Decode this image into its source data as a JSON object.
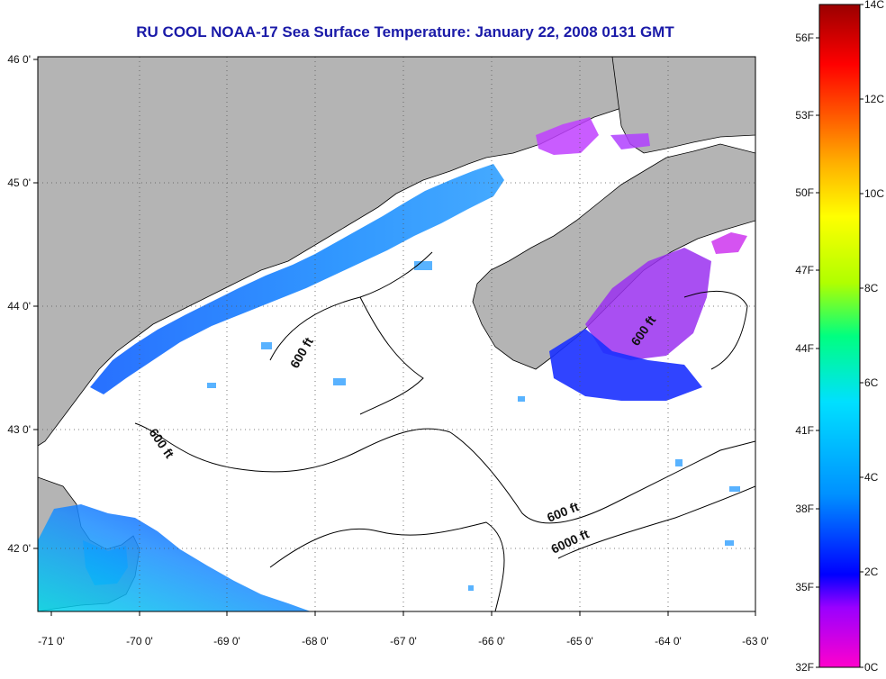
{
  "title": "RU COOL  NOAA-17  Sea Surface Temperature:  January 22, 2008 0131 GMT",
  "map": {
    "lon_ticks": [
      "-71 0'",
      "-70 0'",
      "-69 0'",
      "-68 0'",
      "-67 0'",
      "-66 0'",
      "-65 0'",
      "-64 0'",
      "-63 0'"
    ],
    "lat_ticks": [
      "46 0'",
      "45 0'",
      "44 0'",
      "43 0'",
      "42 0'"
    ],
    "contour_labels": [
      "600 ft",
      "600 ft",
      "600 ft",
      "600 ft",
      "6000 ft"
    ],
    "land_color": "#b4b4b4",
    "nodata_color": "#ffffff"
  },
  "colorbar": {
    "celsius": [
      "14C",
      "12C",
      "10C",
      "8C",
      "6C",
      "4C",
      "2C",
      "0C"
    ],
    "fahrenheit": [
      "56F",
      "53F",
      "50F",
      "47F",
      "44F",
      "41F",
      "38F",
      "35F",
      "32F"
    ],
    "colors": [
      "#ff00cc",
      "#9a00ff",
      "#0000ff",
      "#0090ff",
      "#00e0ff",
      "#00ff80",
      "#b0ff00",
      "#ffff00",
      "#ffb000",
      "#ff5000",
      "#ff0000",
      "#9a0000"
    ]
  }
}
